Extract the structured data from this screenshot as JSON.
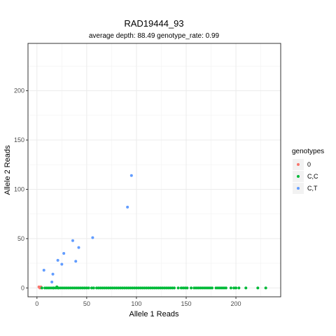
{
  "chart_data": {
    "type": "scatter",
    "title": "RAD19444_93",
    "subtitle": "average depth:  88.49  genotype_rate:  0.99",
    "xlabel": "Allele 1 Reads",
    "ylabel": "Allele 2 Reads",
    "xlim": [
      -9,
      245
    ],
    "ylim": [
      -9,
      248
    ],
    "x_ticks": [
      0,
      50,
      100,
      150,
      200
    ],
    "y_ticks": [
      0,
      50,
      100,
      150,
      200
    ],
    "x_minor": [
      25,
      75,
      125,
      175,
      225
    ],
    "y_minor": [
      25,
      75,
      125,
      175,
      225
    ],
    "grid": true,
    "legend": {
      "title": "genotypes",
      "position": "right",
      "entries": [
        {
          "label": "0",
          "color": "#F8766D"
        },
        {
          "label": "C,C",
          "color": "#00BA38"
        },
        {
          "label": "C,T",
          "color": "#619CFF"
        }
      ]
    },
    "series": [
      {
        "name": "0",
        "color": "#F8766D",
        "points": [
          [
            2,
            1
          ],
          [
            3,
            0
          ],
          [
            4,
            1
          ]
        ]
      },
      {
        "name": "C,C",
        "color": "#00BA38",
        "points": [
          [
            5,
            0
          ],
          [
            8,
            0
          ],
          [
            10,
            0
          ],
          [
            12,
            0
          ],
          [
            14,
            0
          ],
          [
            16,
            0
          ],
          [
            17,
            0
          ],
          [
            19,
            0
          ],
          [
            20,
            1
          ],
          [
            21,
            0
          ],
          [
            22,
            0
          ],
          [
            24,
            0
          ],
          [
            26,
            0
          ],
          [
            28,
            0
          ],
          [
            30,
            0
          ],
          [
            32,
            0
          ],
          [
            34,
            0
          ],
          [
            36,
            0
          ],
          [
            38,
            0
          ],
          [
            40,
            0
          ],
          [
            42,
            0
          ],
          [
            44,
            0
          ],
          [
            46,
            0
          ],
          [
            48,
            0
          ],
          [
            50,
            0
          ],
          [
            52,
            0
          ],
          [
            55,
            0
          ],
          [
            57,
            0
          ],
          [
            60,
            0
          ],
          [
            62,
            0
          ],
          [
            64,
            0
          ],
          [
            66,
            0
          ],
          [
            68,
            0
          ],
          [
            70,
            0
          ],
          [
            72,
            0
          ],
          [
            74,
            0
          ],
          [
            76,
            0
          ],
          [
            78,
            0
          ],
          [
            80,
            0
          ],
          [
            82,
            0
          ],
          [
            84,
            0
          ],
          [
            86,
            0
          ],
          [
            88,
            0
          ],
          [
            90,
            0
          ],
          [
            92,
            0
          ],
          [
            94,
            0
          ],
          [
            96,
            0
          ],
          [
            98,
            0
          ],
          [
            100,
            0
          ],
          [
            102,
            0
          ],
          [
            104,
            0
          ],
          [
            106,
            0
          ],
          [
            108,
            0
          ],
          [
            110,
            0
          ],
          [
            112,
            0
          ],
          [
            114,
            0
          ],
          [
            116,
            0
          ],
          [
            118,
            0
          ],
          [
            120,
            0
          ],
          [
            122,
            0
          ],
          [
            124,
            0
          ],
          [
            126,
            0
          ],
          [
            128,
            0
          ],
          [
            130,
            0
          ],
          [
            132,
            0
          ],
          [
            134,
            0
          ],
          [
            136,
            0
          ],
          [
            138,
            0
          ],
          [
            142,
            0
          ],
          [
            145,
            0
          ],
          [
            147,
            0
          ],
          [
            149,
            0
          ],
          [
            151,
            0
          ],
          [
            155,
            0
          ],
          [
            158,
            0
          ],
          [
            160,
            0
          ],
          [
            162,
            0
          ],
          [
            164,
            0
          ],
          [
            166,
            0
          ],
          [
            168,
            0
          ],
          [
            170,
            0
          ],
          [
            172,
            0
          ],
          [
            174,
            0
          ],
          [
            176,
            0
          ],
          [
            180,
            0
          ],
          [
            182,
            0
          ],
          [
            184,
            0
          ],
          [
            186,
            0
          ],
          [
            188,
            0
          ],
          [
            190,
            0
          ],
          [
            195,
            0
          ],
          [
            198,
            0
          ],
          [
            200,
            0
          ],
          [
            203,
            0
          ],
          [
            210,
            0
          ],
          [
            222,
            0
          ],
          [
            230,
            0
          ]
        ]
      },
      {
        "name": "C,T",
        "color": "#619CFF",
        "points": [
          [
            7,
            18
          ],
          [
            15,
            6
          ],
          [
            16,
            14
          ],
          [
            21,
            28
          ],
          [
            25,
            24
          ],
          [
            27,
            35
          ],
          [
            36,
            48
          ],
          [
            39,
            27
          ],
          [
            42,
            41
          ],
          [
            56,
            51
          ],
          [
            91,
            82
          ],
          [
            95,
            114
          ]
        ]
      }
    ]
  }
}
